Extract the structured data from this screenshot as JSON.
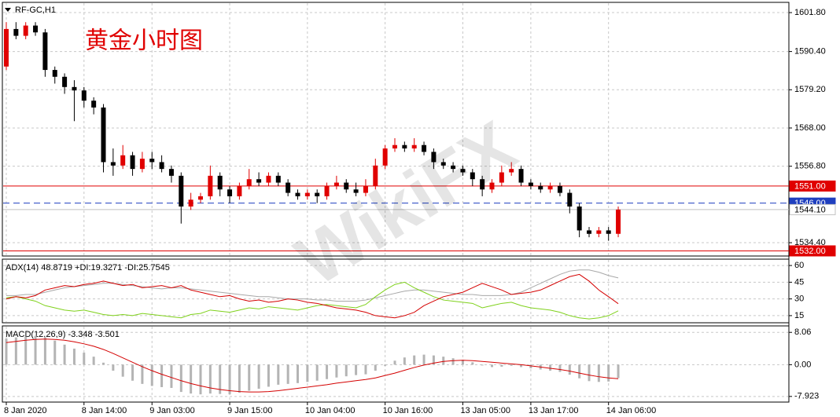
{
  "chart_data": [
    {
      "type": "candlestick",
      "title": "RF-GC,H1",
      "annotation": "黄金小时图",
      "watermark": "WikiFX",
      "up_color": "#e00000",
      "down_color": "#000000",
      "grid": true,
      "open": [
        1586,
        1597,
        1595,
        1598,
        1596,
        1585,
        1583,
        1580,
        1579,
        1576,
        1574,
        1558,
        1557,
        1560,
        1556,
        1559,
        1558,
        1556,
        1554,
        1545,
        1547,
        1548,
        1554,
        1550,
        1548,
        1551,
        1553,
        1552,
        1554,
        1552,
        1549,
        1548,
        1549,
        1548,
        1551,
        1552,
        1550,
        1549,
        1551,
        1557,
        1562,
        1563,
        1562,
        1563,
        1561,
        1558,
        1557,
        1556,
        1555,
        1553,
        1550,
        1552,
        1555,
        1556,
        1552,
        1551,
        1550,
        1551,
        1549,
        1545,
        1538,
        1537,
        1538,
        1537
      ],
      "high": [
        1599,
        1599,
        1599,
        1599,
        1597,
        1586,
        1584,
        1582,
        1580,
        1577,
        1575,
        1562,
        1563,
        1561,
        1561,
        1561,
        1560,
        1557,
        1555,
        1549,
        1549,
        1557,
        1555,
        1551,
        1552,
        1556,
        1555,
        1555,
        1555,
        1553,
        1550,
        1550,
        1550,
        1552,
        1554,
        1553,
        1552,
        1553,
        1559,
        1563,
        1565,
        1564,
        1565,
        1564,
        1562,
        1559,
        1558,
        1557,
        1556,
        1554,
        1553,
        1557,
        1558,
        1557,
        1553,
        1552,
        1552,
        1552,
        1550,
        1546,
        1539,
        1539,
        1539,
        1545
      ],
      "low": [
        1585,
        1594,
        1594,
        1595,
        1583,
        1581,
        1578,
        1570,
        1574,
        1572,
        1555,
        1554,
        1556,
        1554,
        1555,
        1556,
        1555,
        1552,
        1540,
        1544,
        1546,
        1547,
        1548,
        1546,
        1547,
        1550,
        1551,
        1551,
        1551,
        1548,
        1547,
        1547,
        1546,
        1547,
        1550,
        1549,
        1548,
        1548,
        1550,
        1556,
        1561,
        1561,
        1561,
        1560,
        1556,
        1556,
        1555,
        1554,
        1551,
        1548,
        1549,
        1551,
        1554,
        1551,
        1550,
        1549,
        1549,
        1548,
        1543,
        1536,
        1536,
        1536,
        1535,
        1536
      ],
      "close": [
        1597,
        1595,
        1598,
        1596,
        1585,
        1583,
        1580,
        1579,
        1576,
        1574,
        1558,
        1557,
        1560,
        1556,
        1559,
        1558,
        1556,
        1554,
        1545,
        1547,
        1548,
        1554,
        1550,
        1548,
        1551,
        1553,
        1552,
        1554,
        1552,
        1549,
        1548,
        1549,
        1548,
        1551,
        1552,
        1550,
        1549,
        1551,
        1557,
        1562,
        1563,
        1562,
        1563,
        1561,
        1558,
        1557,
        1556,
        1555,
        1553,
        1550,
        1552,
        1555,
        1556,
        1552,
        1551,
        1550,
        1551,
        1549,
        1545,
        1538,
        1537,
        1538,
        1537,
        1544.1
      ],
      "ylim": [
        1530.5,
        1604.8
      ],
      "yticks": [
        {
          "value": 1601.8,
          "label": "1601.80"
        },
        {
          "value": 1590.4,
          "label": "1590.40"
        },
        {
          "value": 1579.2,
          "label": "1579.20"
        },
        {
          "value": 1568,
          "label": "1568.00"
        },
        {
          "value": 1556.8,
          "label": "1556.80"
        },
        {
          "value": 1534.4,
          "label": "1534.40"
        }
      ],
      "levels": [
        {
          "value": 1551,
          "label": "1551.00",
          "color": "#e00000",
          "text_color": "#ffffff",
          "style": "solid"
        },
        {
          "value": 1546,
          "label": "1546.00",
          "color": "#1f3fbf",
          "text_color": "#ffffff",
          "style": "dashed"
        },
        {
          "value": 1544.1,
          "label": "1544.10",
          "color": "#c0c0c0",
          "text_color": "#000000",
          "style": "solid"
        },
        {
          "value": 1532,
          "label": "1532.00",
          "color": "#e00000",
          "text_color": "#ffffff",
          "style": "solid"
        }
      ]
    },
    {
      "type": "line",
      "label": "ADX(14) 48.8719 +DI:19.3271 -DI:25.7545",
      "grid": true,
      "ylim": [
        8.6,
        65.7
      ],
      "yticks": [
        60,
        45,
        30,
        15
      ],
      "series": [
        {
          "color": "#a8a8a8",
          "values": [
            33,
            33,
            34,
            34,
            36,
            38,
            40,
            41,
            42,
            43,
            44,
            44,
            43,
            42,
            41,
            40,
            39,
            40,
            40,
            39,
            38,
            37,
            36,
            35,
            34,
            33,
            32,
            32,
            31,
            30,
            30,
            30,
            29,
            29,
            28,
            28,
            28,
            29,
            31,
            33,
            35,
            37,
            38,
            38,
            37,
            36,
            35,
            34,
            34,
            33,
            33,
            33,
            34,
            36,
            40,
            44,
            48,
            52,
            55,
            56,
            56,
            54,
            51,
            48.8719
          ]
        },
        {
          "color": "#7fd11b",
          "values": [
            31,
            32,
            30,
            28,
            24,
            22,
            20,
            19,
            20,
            18,
            16,
            15,
            16,
            15,
            17,
            16,
            15,
            14,
            13,
            16,
            17,
            20,
            19,
            18,
            20,
            22,
            21,
            23,
            22,
            21,
            20,
            22,
            24,
            25,
            24,
            23,
            22,
            25,
            32,
            38,
            43,
            45,
            40,
            36,
            32,
            29,
            28,
            27,
            26,
            22,
            24,
            26,
            27,
            24,
            22,
            21,
            20,
            18,
            15,
            13,
            12,
            13,
            15,
            19.3271
          ]
        },
        {
          "color": "#d40000",
          "values": [
            30,
            32,
            31,
            33,
            38,
            40,
            42,
            41,
            43,
            44,
            46,
            44,
            42,
            43,
            40,
            41,
            42,
            40,
            42,
            38,
            36,
            34,
            32,
            33,
            30,
            28,
            29,
            27,
            28,
            30,
            29,
            27,
            26,
            24,
            22,
            21,
            20,
            18,
            15,
            14,
            13,
            15,
            18,
            24,
            28,
            32,
            34,
            36,
            40,
            44,
            41,
            38,
            34,
            35,
            36,
            38,
            42,
            46,
            50,
            52,
            46,
            38,
            32,
            25.7545
          ]
        }
      ]
    },
    {
      "type": "bar",
      "label": "MACD(12,26,9) -3.348 -3.501",
      "grid": true,
      "ylim": [
        -9.33,
        9.67
      ],
      "yticks": [
        8.06,
        {
          "value": 0,
          "label": "0.00"
        },
        -7.923
      ],
      "categories": [
        "8 Jan 2020",
        null,
        null,
        null,
        null,
        null,
        null,
        null,
        "8 Jan 14:00",
        null,
        null,
        null,
        null,
        null,
        null,
        "9 Jan 03:00",
        null,
        null,
        null,
        null,
        null,
        null,
        null,
        "9 Jan 15:00",
        null,
        null,
        null,
        null,
        null,
        null,
        null,
        "10 Jan 04:00",
        null,
        null,
        null,
        null,
        null,
        null,
        null,
        "10 Jan 16:00",
        null,
        null,
        null,
        null,
        null,
        null,
        null,
        "13 Jan 05:00",
        null,
        null,
        null,
        null,
        null,
        null,
        "13 Jan 17:00",
        null,
        null,
        null,
        null,
        null,
        null,
        null,
        "14 Jan 06:00",
        null
      ],
      "series": [
        {
          "type": "bar",
          "color": "#b4b4b4",
          "values": [
            6.5,
            6.8,
            7,
            7.2,
            6.8,
            6,
            5,
            4,
            3,
            2,
            0.5,
            -1.5,
            -3,
            -4,
            -4.8,
            -5.3,
            -5.6,
            -5.8,
            -6.8,
            -7.2,
            -7.4,
            -7.2,
            -7.3,
            -7.4,
            -7,
            -6.5,
            -6,
            -5.5,
            -5,
            -4.8,
            -4.6,
            -4.3,
            -4,
            -3.6,
            -3.2,
            -2.9,
            -2.6,
            -2.4,
            -1.5,
            -0.3,
            1,
            1.8,
            2.3,
            2.5,
            2.3,
            2,
            1.6,
            1.2,
            0.6,
            -0.2,
            -0.6,
            -0.5,
            -0.3,
            -0.6,
            -0.9,
            -1.2,
            -1.5,
            -1.8,
            -2.5,
            -3.4,
            -4.1,
            -4.3,
            -4.2,
            -3.348
          ]
        },
        {
          "type": "line",
          "color": "#d40000",
          "values": [
            5.5,
            5.8,
            6.1,
            6.3,
            6.4,
            6.3,
            6.1,
            5.7,
            5.2,
            4.6,
            3.8,
            2.8,
            1.7,
            0.6,
            -0.5,
            -1.5,
            -2.4,
            -3.2,
            -4,
            -4.7,
            -5.3,
            -5.8,
            -6.2,
            -6.5,
            -6.7,
            -6.8,
            -6.8,
            -6.7,
            -6.5,
            -6.2,
            -5.9,
            -5.6,
            -5.3,
            -5,
            -4.6,
            -4.3,
            -4,
            -3.7,
            -3.3,
            -2.7,
            -2.1,
            -1.4,
            -0.7,
            -0.1,
            0.4,
            0.8,
            1,
            1.1,
            1,
            0.8,
            0.6,
            0.4,
            0.2,
            0,
            -0.3,
            -0.6,
            -0.9,
            -1.2,
            -1.6,
            -2.1,
            -2.6,
            -3,
            -3.3,
            -3.501
          ]
        }
      ]
    }
  ]
}
